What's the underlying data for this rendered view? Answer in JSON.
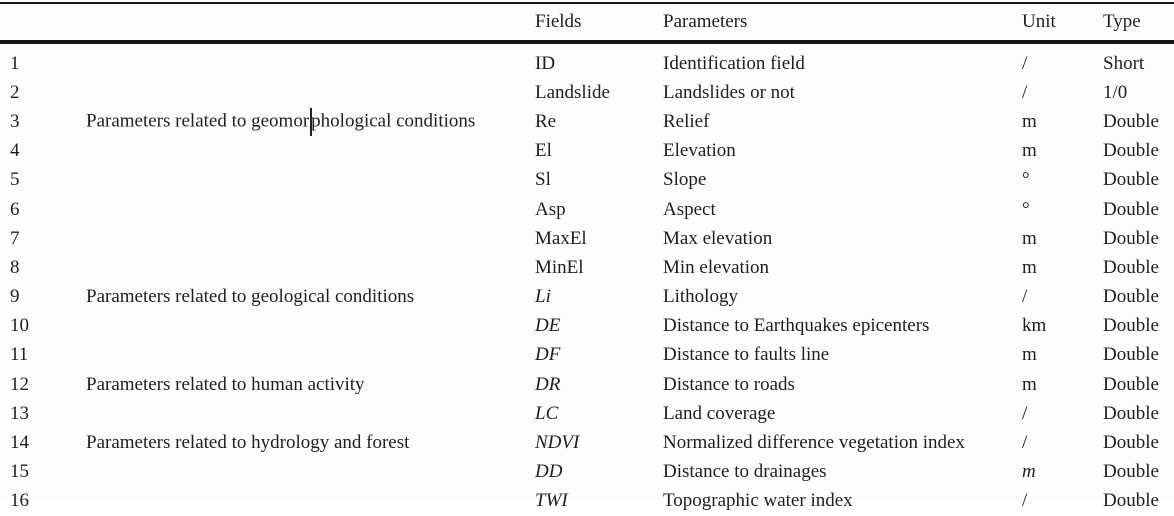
{
  "table": {
    "headers": {
      "num": "",
      "category": "",
      "fields": "Fields",
      "parameters": "Parameters",
      "unit": "Unit",
      "type": "Type"
    },
    "rows": [
      {
        "num": "1",
        "category": "",
        "field": "ID",
        "field_italic": false,
        "parameter": "Identification field",
        "unit": "/",
        "unit_italic": false,
        "type": "Short"
      },
      {
        "num": "2",
        "category": "",
        "field": "Landslide",
        "field_italic": false,
        "parameter": "Landslides or not",
        "unit": "/",
        "unit_italic": false,
        "type": "1/0"
      },
      {
        "num": "3",
        "category": "Parameters related to geomorphological conditions",
        "field": "Re",
        "field_italic": false,
        "parameter": "Relief",
        "unit": "m",
        "unit_italic": false,
        "type": "Double"
      },
      {
        "num": "4",
        "category": "",
        "field": "El",
        "field_italic": false,
        "parameter": "Elevation",
        "unit": "m",
        "unit_italic": false,
        "type": "Double"
      },
      {
        "num": "5",
        "category": "",
        "field": "Sl",
        "field_italic": false,
        "parameter": "Slope",
        "unit": "°",
        "unit_italic": false,
        "type": "Double"
      },
      {
        "num": "6",
        "category": "",
        "field": "Asp",
        "field_italic": false,
        "parameter": "Aspect",
        "unit": "°",
        "unit_italic": false,
        "type": "Double"
      },
      {
        "num": "7",
        "category": "",
        "field": "MaxEl",
        "field_italic": false,
        "parameter": "Max elevation",
        "unit": "m",
        "unit_italic": false,
        "type": "Double"
      },
      {
        "num": "8",
        "category": "",
        "field": "MinEl",
        "field_italic": false,
        "parameter": "Min elevation",
        "unit": "m",
        "unit_italic": false,
        "type": "Double"
      },
      {
        "num": "9",
        "category": "Parameters related to geological conditions",
        "field": "Li",
        "field_italic": true,
        "parameter": "Lithology",
        "unit": "/",
        "unit_italic": false,
        "type": "Double"
      },
      {
        "num": "10",
        "category": "",
        "field": "DE",
        "field_italic": true,
        "parameter": "Distance to Earthquakes epicenters",
        "unit": "km",
        "unit_italic": false,
        "type": "Double"
      },
      {
        "num": "11",
        "category": "",
        "field": "DF",
        "field_italic": true,
        "parameter": "Distance to faults line",
        "unit": "m",
        "unit_italic": false,
        "type": "Double"
      },
      {
        "num": "12",
        "category": "Parameters related to human activity",
        "field": "DR",
        "field_italic": true,
        "parameter": "Distance to roads",
        "unit": "m",
        "unit_italic": false,
        "type": "Double"
      },
      {
        "num": "13",
        "category": "",
        "field": "LC",
        "field_italic": true,
        "parameter": "Land coverage",
        "unit": "/",
        "unit_italic": false,
        "type": "Double"
      },
      {
        "num": "14",
        "category": "Parameters related to hydrology and forest",
        "field": "NDVI",
        "field_italic": true,
        "parameter": "Normalized difference vegetation index",
        "unit": "/",
        "unit_italic": false,
        "type": "Double"
      },
      {
        "num": "15",
        "category": "",
        "field": "DD",
        "field_italic": true,
        "parameter": "Distance to drainages",
        "unit": "m",
        "unit_italic": true,
        "type": "Double"
      },
      {
        "num": "16",
        "category": "",
        "field": "TWI",
        "field_italic": true,
        "parameter": "Topographic water index",
        "unit": "/",
        "unit_italic": false,
        "type": "Double"
      }
    ]
  },
  "cursor": {
    "row_index": 2,
    "before": "Parameters related to geomor",
    "after": "phological conditions"
  },
  "colors": {
    "background": "#fdfdfc",
    "text": "#1e1e1e",
    "rule": "#1a1a1a"
  }
}
